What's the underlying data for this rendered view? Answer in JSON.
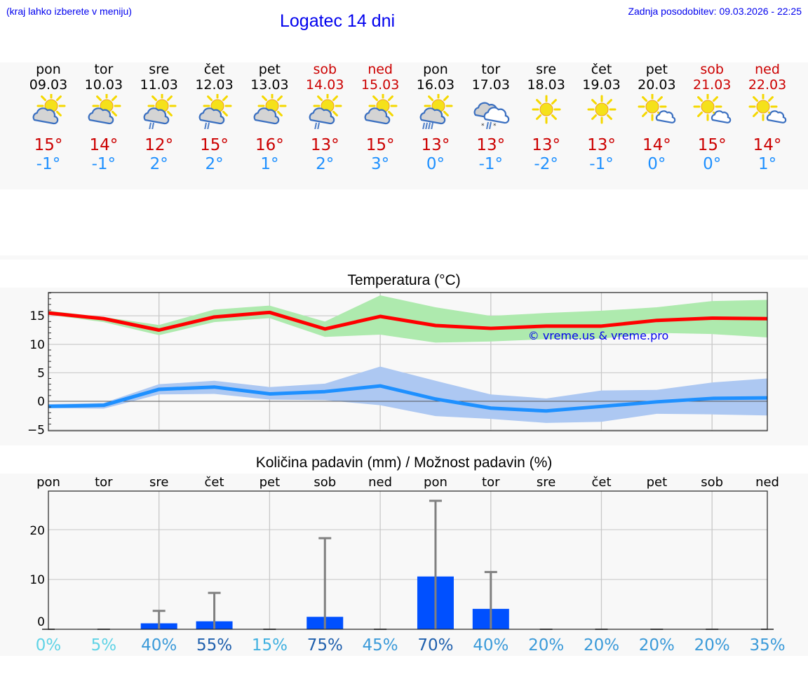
{
  "header": {
    "menu_hint": "(kraj lahko izberete v meniju)",
    "title": "Logatec 14 dni",
    "last_update": "Zadnja posodobitev: 09.03.2026 - 22:25"
  },
  "days": [
    {
      "name": "pon",
      "date": "09.03",
      "icon": "partly-cloudy-icon",
      "tmax": "15°",
      "tmin": "-1°",
      "weekend": false
    },
    {
      "name": "tor",
      "date": "10.03",
      "icon": "partly-cloudy-icon",
      "tmax": "14°",
      "tmin": "-1°",
      "weekend": false
    },
    {
      "name": "sre",
      "date": "11.03",
      "icon": "partly-cloudy-light-rain-icon",
      "tmax": "12°",
      "tmin": "2°",
      "weekend": false
    },
    {
      "name": "čet",
      "date": "12.03",
      "icon": "partly-cloudy-light-rain-icon",
      "tmax": "15°",
      "tmin": "2°",
      "weekend": false
    },
    {
      "name": "pet",
      "date": "13.03",
      "icon": "partly-cloudy-icon",
      "tmax": "16°",
      "tmin": "1°",
      "weekend": false
    },
    {
      "name": "sob",
      "date": "14.03",
      "icon": "partly-cloudy-light-rain-icon",
      "tmax": "13°",
      "tmin": "2°",
      "weekend": true
    },
    {
      "name": "ned",
      "date": "15.03",
      "icon": "partly-cloudy-icon",
      "tmax": "15°",
      "tmin": "3°",
      "weekend": true
    },
    {
      "name": "pon",
      "date": "16.03",
      "icon": "partly-cloudy-rain-icon",
      "tmax": "13°",
      "tmin": "0°",
      "weekend": false
    },
    {
      "name": "tor",
      "date": "17.03",
      "icon": "cloudy-sleet-icon",
      "tmax": "13°",
      "tmin": "-1°",
      "weekend": false
    },
    {
      "name": "sre",
      "date": "18.03",
      "icon": "sunny-icon",
      "tmax": "13°",
      "tmin": "-2°",
      "weekend": false
    },
    {
      "name": "čet",
      "date": "19.03",
      "icon": "sunny-icon",
      "tmax": "13°",
      "tmin": "-1°",
      "weekend": false
    },
    {
      "name": "pet",
      "date": "20.03",
      "icon": "mostly-sunny-icon",
      "tmax": "14°",
      "tmin": "0°",
      "weekend": false
    },
    {
      "name": "sob",
      "date": "21.03",
      "icon": "mostly-sunny-icon",
      "tmax": "15°",
      "tmin": "0°",
      "weekend": true
    },
    {
      "name": "ned",
      "date": "22.03",
      "icon": "mostly-sunny-icon",
      "tmax": "14°",
      "tmin": "1°",
      "weekend": true
    }
  ],
  "colors": {
    "tmax_text": "#cc0000",
    "tmin_text": "#1e90ff",
    "tmax_line": "#ff0000",
    "tmax_band": "#aeeaae",
    "tmin_line": "#1e90ff",
    "tmin_band": "#adc8f2",
    "precip_bar": "#0050ff",
    "error_bar": "#808080",
    "link": "#0000ee",
    "panel_bg": "#f8f8f8"
  },
  "temp_chart": {
    "title": "Temperatura (°C)",
    "watermark": "© vreme.us & vreme.pro"
  },
  "precip_chart": {
    "title": "Količina padavin (mm) / Možnost padavin (%)",
    "probabilities": [
      {
        "label": "0%",
        "color": "#5fd3e6"
      },
      {
        "label": "5%",
        "color": "#5fd3e6"
      },
      {
        "label": "40%",
        "color": "#3a9ad9"
      },
      {
        "label": "55%",
        "color": "#1f5fad"
      },
      {
        "label": "15%",
        "color": "#3fb0e0"
      },
      {
        "label": "75%",
        "color": "#1f5fad"
      },
      {
        "label": "45%",
        "color": "#3a9ad9"
      },
      {
        "label": "70%",
        "color": "#1f5fad"
      },
      {
        "label": "40%",
        "color": "#3a9ad9"
      },
      {
        "label": "20%",
        "color": "#3a9ad9"
      },
      {
        "label": "20%",
        "color": "#3a9ad9"
      },
      {
        "label": "20%",
        "color": "#3a9ad9"
      },
      {
        "label": "20%",
        "color": "#3a9ad9"
      },
      {
        "label": "35%",
        "color": "#3a9ad9"
      }
    ]
  },
  "chart_data": [
    {
      "type": "line",
      "title": "Temperatura (°C)",
      "xlabel": "",
      "ylabel": "°C",
      "categories": [
        "09.03",
        "10.03",
        "11.03",
        "12.03",
        "13.03",
        "14.03",
        "15.03",
        "16.03",
        "17.03",
        "18.03",
        "19.03",
        "20.03",
        "21.03",
        "22.03"
      ],
      "ylim": [
        -5.2,
        19.1
      ],
      "yticks": [
        -5,
        0,
        5,
        10,
        15
      ],
      "grid": true,
      "series": [
        {
          "name": "Tmax",
          "color": "#ff0000",
          "values": [
            15.5,
            14.5,
            12.5,
            14.8,
            15.6,
            12.7,
            14.9,
            13.3,
            12.8,
            13.2,
            13.2,
            14.2,
            14.6,
            14.5
          ]
        },
        {
          "name": "Tmax band upper",
          "color": "#aeeaae",
          "values": [
            15.9,
            14.8,
            13.4,
            16.1,
            16.8,
            14.0,
            18.6,
            16.5,
            15.0,
            15.5,
            15.9,
            16.5,
            17.6,
            17.8
          ]
        },
        {
          "name": "Tmax band lower",
          "color": "#aeeaae",
          "values": [
            15.2,
            13.9,
            11.6,
            13.9,
            14.6,
            11.3,
            11.7,
            10.3,
            10.5,
            10.9,
            11.0,
            12.0,
            11.8,
            11.2
          ]
        },
        {
          "name": "Tmin",
          "color": "#1e90ff",
          "values": [
            -0.9,
            -0.7,
            2.1,
            2.5,
            1.3,
            1.7,
            2.7,
            0.4,
            -1.2,
            -1.7,
            -0.9,
            -0.1,
            0.5,
            0.6
          ]
        },
        {
          "name": "Tmin band upper",
          "color": "#adc8f2",
          "values": [
            -0.5,
            -0.3,
            3.0,
            3.6,
            2.5,
            3.1,
            6.1,
            3.6,
            1.2,
            0.5,
            1.9,
            2.0,
            3.3,
            4.0
          ]
        },
        {
          "name": "Tmin band lower",
          "color": "#adc8f2",
          "values": [
            -1.2,
            -1.3,
            1.2,
            1.3,
            0.3,
            0.2,
            -0.7,
            -2.6,
            -3.1,
            -3.8,
            -3.6,
            -2.2,
            -2.3,
            -2.5
          ]
        }
      ],
      "annotations": [
        "© vreme.us & vreme.pro"
      ]
    },
    {
      "type": "bar",
      "title": "Količina padavin (mm) / Možnost padavin (%)",
      "categories": [
        "pon",
        "tor",
        "sre",
        "čet",
        "pet",
        "sob",
        "ned",
        "pon",
        "tor",
        "sre",
        "čet",
        "pet",
        "sob",
        "ned"
      ],
      "ylim": [
        0,
        27.7
      ],
      "yticks": [
        0,
        10,
        20
      ],
      "grid": true,
      "series": [
        {
          "name": "Količina padavin (mm)",
          "color": "#0050ff",
          "values": [
            0,
            0,
            1.2,
            1.6,
            0,
            2.5,
            0,
            10.6,
            4.1,
            0,
            0,
            0,
            0,
            0
          ]
        },
        {
          "name": "Max (error bar)",
          "color": "#808080",
          "values": [
            0,
            0,
            3.7,
            7.3,
            0,
            18.3,
            0,
            25.8,
            11.5,
            0,
            0,
            0,
            0,
            0
          ]
        },
        {
          "name": "Možnost padavin (%)",
          "values": [
            0,
            5,
            40,
            55,
            15,
            75,
            45,
            70,
            40,
            20,
            20,
            20,
            20,
            35
          ]
        }
      ]
    }
  ]
}
